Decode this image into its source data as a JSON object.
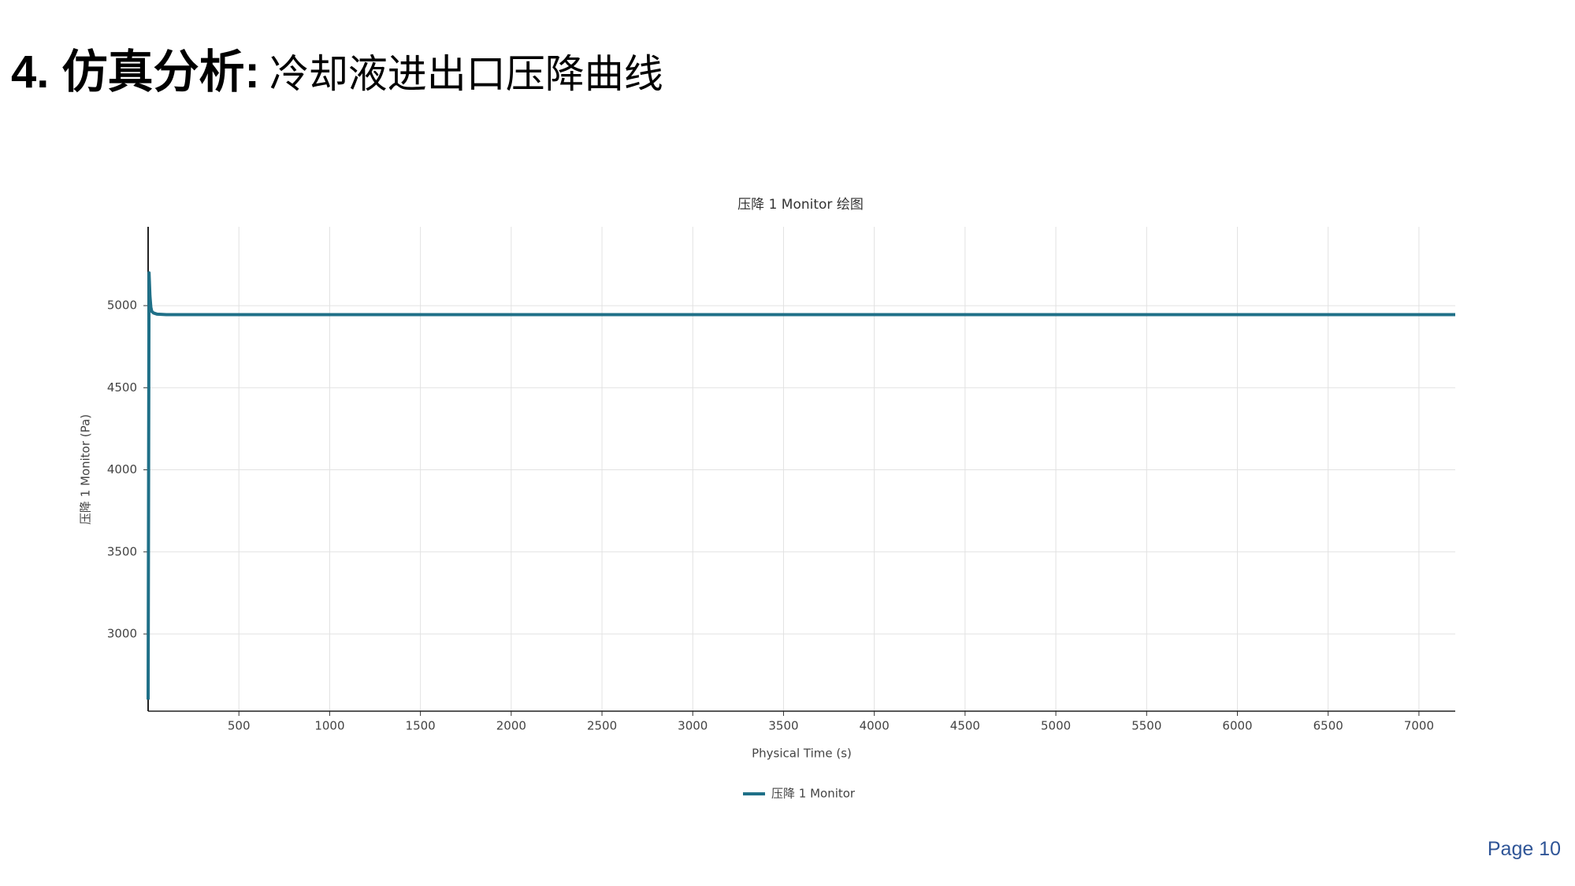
{
  "header": {
    "title_bold": "4. 仿真分析:",
    "title_rest": "冷却液进出口压降曲线"
  },
  "footer": {
    "page": "Page 10"
  },
  "chart_data": {
    "type": "line",
    "title": "压降 1 Monitor 绘图",
    "x_label": "Physical Time (s)",
    "y_label": "压降 1 Monitor (Pa)",
    "x": [
      0,
      5,
      10,
      15,
      20,
      30,
      50,
      100,
      200,
      7200
    ],
    "series": [
      {
        "name": "压降 1 Monitor",
        "color": "#1f7088",
        "values": [
          2600,
          5200,
          5060,
          4990,
          4965,
          4955,
          4948,
          4945,
          4945,
          4945
        ]
      }
    ],
    "xlim": [
      0,
      7200
    ],
    "xticks": [
      500,
      1000,
      1500,
      2000,
      2500,
      3000,
      3500,
      4000,
      4500,
      5000,
      5500,
      6000,
      6500,
      7000
    ],
    "ylim": [
      2530,
      5480
    ],
    "yticks": [
      3000,
      3500,
      4000,
      4500,
      5000
    ],
    "grid": true,
    "legend": "bottom"
  }
}
